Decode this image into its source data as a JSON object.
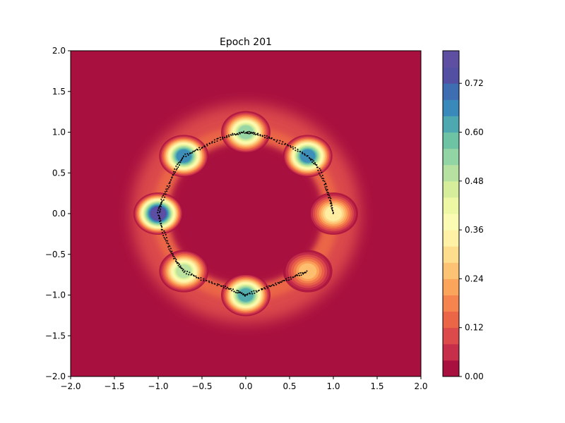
{
  "chart_data": {
    "type": "heatmap",
    "title": "Epoch 201",
    "xlabel": "",
    "ylabel": "",
    "xlim": [
      -2.0,
      2.0
    ],
    "ylim": [
      -2.0,
      2.0
    ],
    "x_ticks": [
      "−2.0",
      "−1.5",
      "−1.0",
      "−0.5",
      "0.0",
      "0.5",
      "1.0",
      "1.5",
      "2.0"
    ],
    "y_ticks": [
      "−2.0",
      "−1.5",
      "−1.0",
      "−0.5",
      "0.0",
      "0.5",
      "1.0",
      "1.5",
      "2.0"
    ],
    "grid": false,
    "colormap": "Spectral",
    "colorbar": {
      "range": [
        0.0,
        0.8
      ],
      "levels": 20,
      "tick_values": [
        0.0,
        0.12,
        0.24,
        0.36,
        0.48,
        0.6,
        0.72
      ],
      "tick_labels": [
        "0.00",
        "0.12",
        "0.24",
        "0.36",
        "0.48",
        "0.60",
        "0.72"
      ],
      "colors": [
        "#a8103f",
        "#c62e4a",
        "#dc4a4c",
        "#eb6547",
        "#f5844f",
        "#fba45c",
        "#fdc374",
        "#fedd8d",
        "#fff2a7",
        "#fbfbb3",
        "#eef8a4",
        "#d6ee9b",
        "#b6e1a1",
        "#92d4a4",
        "#6ec3a5",
        "#4ea8b0",
        "#3989bb",
        "#3f6db2",
        "#5350a4",
        "#5e4fa2"
      ]
    },
    "density_peaks": [
      {
        "x": 1.0,
        "y": 0.0,
        "value": 0.36
      },
      {
        "x": 0.707,
        "y": 0.707,
        "value": 0.66
      },
      {
        "x": 0.0,
        "y": 1.0,
        "value": 0.56
      },
      {
        "x": -0.707,
        "y": 0.707,
        "value": 0.7
      },
      {
        "x": -1.0,
        "y": 0.0,
        "value": 0.78
      },
      {
        "x": -0.707,
        "y": -0.707,
        "value": 0.5
      },
      {
        "x": 0.0,
        "y": -1.0,
        "value": 0.64
      },
      {
        "x": 0.707,
        "y": -0.707,
        "value": 0.3
      }
    ],
    "samples_path": [
      [
        1.0,
        0.0
      ],
      [
        0.96,
        0.18
      ],
      [
        0.9,
        0.38
      ],
      [
        0.82,
        0.58
      ],
      [
        0.707,
        0.707
      ],
      [
        0.52,
        0.82
      ],
      [
        0.3,
        0.92
      ],
      [
        0.12,
        0.98
      ],
      [
        0.0,
        1.0
      ],
      [
        -0.15,
        0.97
      ],
      [
        -0.32,
        0.91
      ],
      [
        -0.52,
        0.8
      ],
      [
        -0.707,
        0.707
      ],
      [
        -0.8,
        0.55
      ],
      [
        -0.88,
        0.35
      ],
      [
        -0.96,
        0.15
      ],
      [
        -1.0,
        0.0
      ],
      [
        -0.95,
        -0.2
      ],
      [
        -0.88,
        -0.4
      ],
      [
        -0.8,
        -0.58
      ],
      [
        -0.707,
        -0.707
      ],
      [
        -0.52,
        -0.8
      ],
      [
        -0.3,
        -0.88
      ],
      [
        -0.12,
        -0.95
      ],
      [
        0.0,
        -1.0
      ],
      [
        0.18,
        -0.93
      ],
      [
        0.38,
        -0.85
      ],
      [
        0.56,
        -0.77
      ],
      [
        0.707,
        -0.707
      ]
    ]
  }
}
